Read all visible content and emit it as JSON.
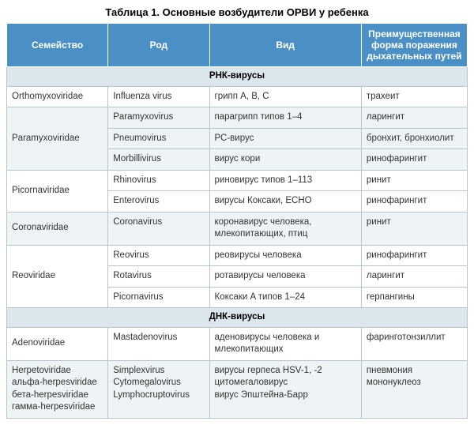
{
  "title": "Таблица 1. Основные возбудители ОРВИ у ребенка",
  "columns": [
    "Семейство",
    "Род",
    "Вид",
    "Преимущественная форма поражения дыхательных путей"
  ],
  "colors": {
    "header_bg": "#4a90c7",
    "header_fg": "#ffffff",
    "section_bg": "#dce6ed",
    "band_a": "#ffffff",
    "band_b": "#eef3f6",
    "border": "#b8c4cc"
  },
  "typography": {
    "title_fontsize": 13,
    "cell_fontsize": 11.5,
    "header_fontsize": 12
  },
  "col_widths_pct": [
    22,
    22,
    33,
    23
  ],
  "sections": [
    {
      "label": "РНК-вирусы",
      "groups": [
        {
          "band": "a",
          "family": "Orthomyxoviridae",
          "rows": [
            {
              "genus": "Influenza virus",
              "species": "грипп A, B, C",
              "form": "трахеит"
            }
          ]
        },
        {
          "band": "b",
          "family": "Paramyxoviridae",
          "rows": [
            {
              "genus": "Paramyxovirus",
              "species": "парагрипп типов 1–4",
              "form": "ларингит"
            },
            {
              "genus": "Pneumovirus",
              "species": "РС-вирус",
              "form": "бронхит, бронхиолит"
            },
            {
              "genus": "Morbillivirus",
              "species": "вирус кори",
              "form": "ринофарингит"
            }
          ]
        },
        {
          "band": "a",
          "family": "Picornaviridae",
          "rows": [
            {
              "genus": "Rhinovirus",
              "species": "риновирус типов 1–113",
              "form": "ринит"
            },
            {
              "genus": "Enterovirus",
              "species": "вирусы Коксаки, ЕСНО",
              "form": "ринофарингит"
            }
          ]
        },
        {
          "band": "b",
          "family": "Coronaviridae",
          "rows": [
            {
              "genus": "Coronavirus",
              "species": "коронавирус человека, млекопитающих, птиц",
              "form": "ринит"
            }
          ]
        },
        {
          "band": "a",
          "family": "Reoviridae",
          "rows": [
            {
              "genus": "Reovirus",
              "species": "реовирусы человека",
              "form": "ринофарингит"
            },
            {
              "genus": "Rotavirus",
              "species": "ротавирусы человека",
              "form": "ларингит"
            },
            {
              "genus": "Picornavirus",
              "species": "Коксаки A типов 1–24",
              "form": "герпангины"
            }
          ]
        }
      ]
    },
    {
      "label": "ДНК-вирусы",
      "groups": [
        {
          "band": "a",
          "family": "Adenoviridae",
          "rows": [
            {
              "genus": "Mastadenovirus",
              "species": "аденовирусы человека и млекопитающих",
              "form": "фаринготонзиллит"
            }
          ]
        },
        {
          "band": "b",
          "family": "Herpetoviridae\nальфа-herpesviridae\nбета-herpesviridae\nгамма-herpesviridae",
          "rows": [
            {
              "genus": "Simplexvirus\nCytomegalovirus\nLymphocruptovirus",
              "species": "вирусы герпеса HSV-1, -2\nцитомегаловирус\nвирус Эпштейна-Барр",
              "form": "пневмония\nмононуклеоз"
            }
          ]
        }
      ]
    }
  ]
}
